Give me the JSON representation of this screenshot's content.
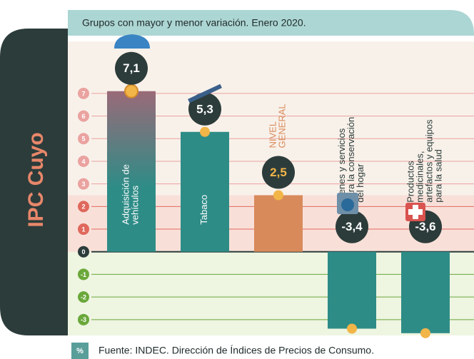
{
  "chart_data": {
    "type": "bar",
    "panel_label": "IPC Cuyo",
    "title": "Grupos con mayor y menor variación. Enero 2020.",
    "unit_label": "%",
    "source": "Fuente: INDEC. Dirección de Índices de Precios de Consumo.",
    "categories": [
      "Adquisición de\nvehículos",
      "Tabaco",
      "NIVEL\nGENERAL",
      "Bienes y servicios\npara la conservación\ndel hogar",
      "Productos\nmedicinales,\nartefactos y equipos\npara la salud"
    ],
    "values": [
      7.1,
      5.3,
      2.5,
      -3.4,
      -3.6
    ],
    "value_labels": [
      "7,1",
      "5,3",
      "2,5",
      "-3,4",
      "-3,6"
    ],
    "colors": [
      "#2e8c87",
      "#2e8c87",
      "#d98a5a",
      "#2e8c87",
      "#2e8c87"
    ],
    "ylim": [
      -3.7,
      9.3
    ],
    "yticks": [
      -3,
      -2,
      -1,
      0,
      1,
      2,
      3,
      4,
      5,
      6,
      7
    ],
    "grid": true
  }
}
